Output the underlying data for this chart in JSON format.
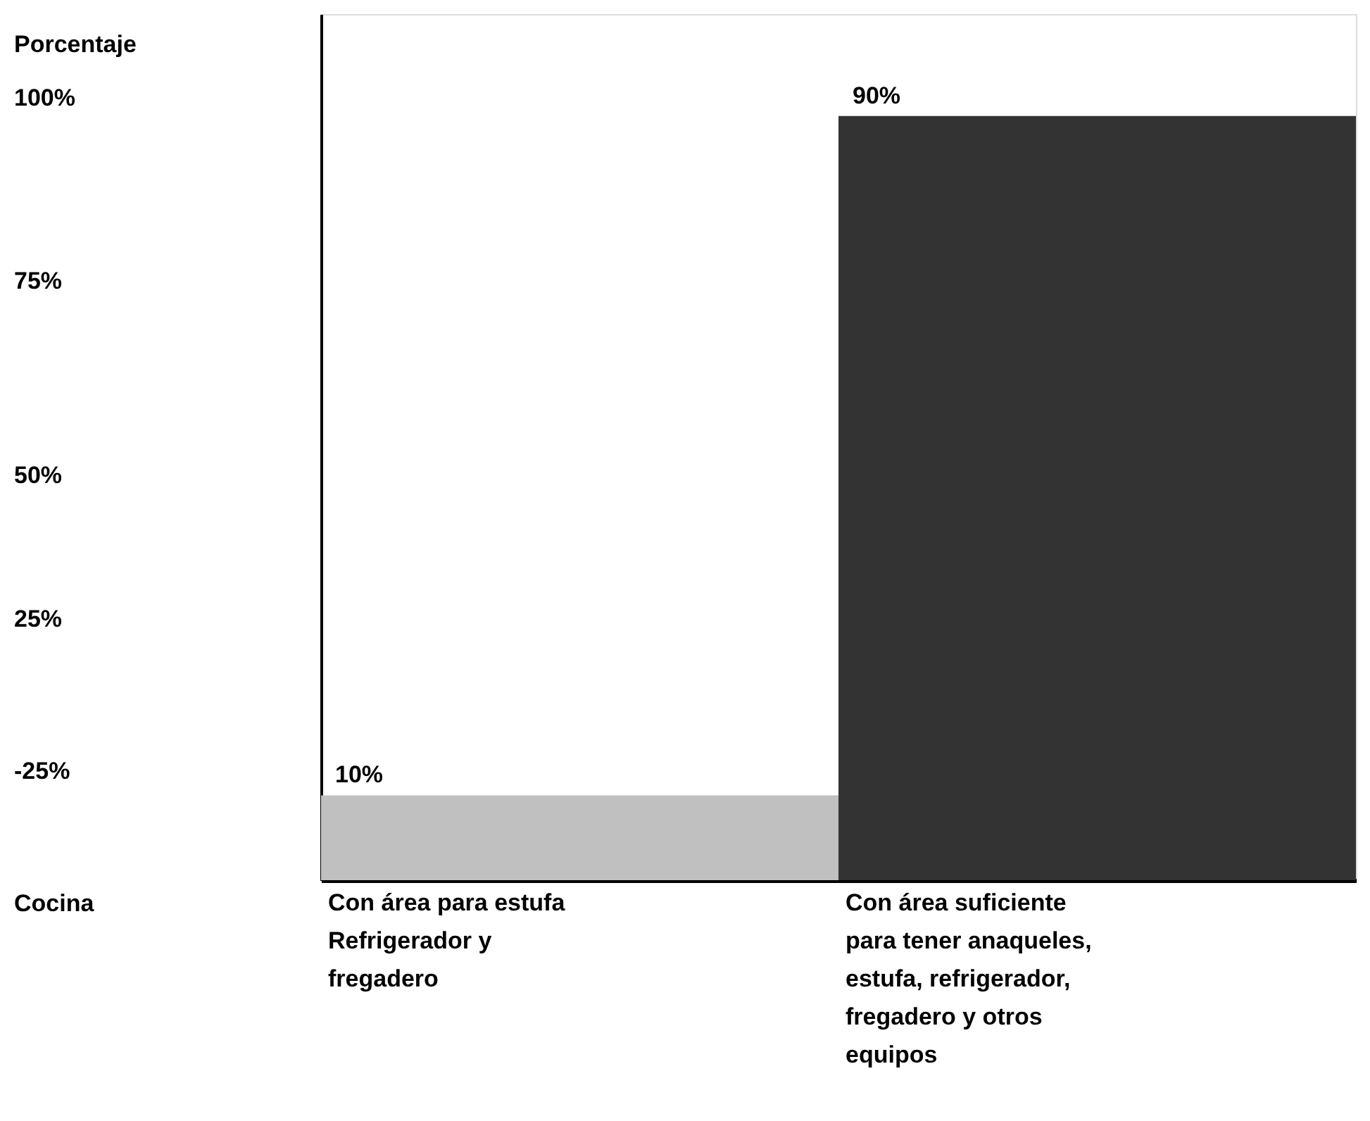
{
  "chart_data": {
    "type": "bar",
    "categories": [
      "Con área para estufa\nRefrigerador y\nfregadero",
      "Con área suficiente\npara tener anaqueles,\nestufa, refrigerador,\n fregadero y otros\nequipos"
    ],
    "values": [
      10,
      90
    ],
    "colors": [
      "#c0c0c0",
      "#333333"
    ],
    "data_labels": true,
    "value_labels": [
      "10%",
      "90%"
    ],
    "ylim": [
      0,
      102
    ],
    "annotations": [
      "Porcentaje",
      "100%",
      "75%",
      "50%",
      "25%",
      "-25%",
      "Cocina"
    ]
  }
}
